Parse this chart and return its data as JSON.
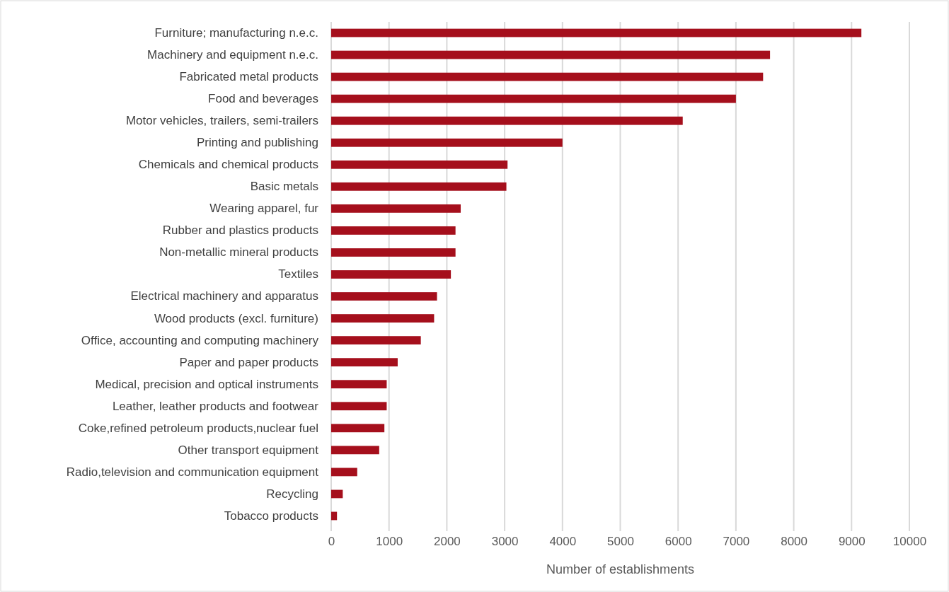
{
  "chart_data": {
    "type": "bar",
    "orientation": "horizontal",
    "xlabel": "Number  of establishments",
    "categories": [
      "Furniture; manufacturing n.e.c.",
      "Machinery and equipment n.e.c.",
      "Fabricated metal products",
      "Food and beverages",
      "Motor vehicles, trailers, semi-trailers",
      "Printing and publishing",
      "Chemicals and chemical products",
      "Basic metals",
      "Wearing apparel, fur",
      "Rubber and plastics products",
      "Non-metallic mineral products",
      "Textiles",
      "Electrical machinery and apparatus",
      "Wood products (excl. furniture)",
      "Office, accounting and computing machinery",
      "Paper and paper products",
      "Medical, precision and optical instruments",
      "Leather, leather products and footwear",
      "Coke,refined petroleum products,nuclear fuel",
      "Other transport equipment",
      "Radio,television and communication equipment",
      "Recycling",
      "Tobacco products"
    ],
    "values": [
      9170,
      7590,
      7470,
      7000,
      6080,
      4000,
      3050,
      3030,
      2240,
      2150,
      2150,
      2070,
      1830,
      1780,
      1550,
      1150,
      960,
      960,
      920,
      830,
      450,
      200,
      100
    ],
    "color": "#a50f1c",
    "xlim": [
      0,
      10000
    ],
    "xticks": [
      0,
      1000,
      2000,
      3000,
      4000,
      5000,
      6000,
      7000,
      8000,
      9000,
      10000
    ],
    "grid": "x"
  }
}
